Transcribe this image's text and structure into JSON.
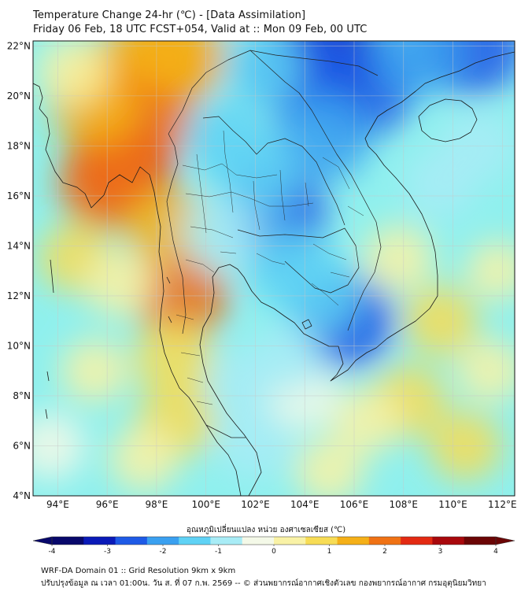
{
  "header": {
    "line1": "Temperature Change 24-hr (℃) - [Data Assimilation]",
    "line2": "Friday 06 Feb, 18 UTC FCST+054, Valid at :: Mon 09 Feb, 00 UTC"
  },
  "map": {
    "lat_range": [
      4,
      22.2
    ],
    "lon_range": [
      93,
      112.5
    ],
    "lat_ticks": [
      {
        "value": 22,
        "label": "22°N"
      },
      {
        "value": 20,
        "label": "20°N"
      },
      {
        "value": 18,
        "label": "18°N"
      },
      {
        "value": 16,
        "label": "16°N"
      },
      {
        "value": 14,
        "label": "14°N"
      },
      {
        "value": 12,
        "label": "12°N"
      },
      {
        "value": 10,
        "label": "10°N"
      },
      {
        "value": 8,
        "label": "8°N"
      },
      {
        "value": 6,
        "label": "6°N"
      },
      {
        "value": 4,
        "label": "4°N"
      }
    ],
    "lon_ticks": [
      {
        "value": 94,
        "label": "94°E"
      },
      {
        "value": 96,
        "label": "96°E"
      },
      {
        "value": 98,
        "label": "98°E"
      },
      {
        "value": 100,
        "label": "100°E"
      },
      {
        "value": 102,
        "label": "102°E"
      },
      {
        "value": 104,
        "label": "104°E"
      },
      {
        "value": 106,
        "label": "106°E"
      },
      {
        "value": 108,
        "label": "108°E"
      },
      {
        "value": 110,
        "label": "110°E"
      },
      {
        "value": 112,
        "label": "112°E"
      }
    ],
    "background_color": "#8ff0ee"
  },
  "colorbar": {
    "title": "อุณหภูมิเปลี่ยนแปลง หน่วย องศาเซลเซียส (℃)",
    "range": [
      -4,
      4
    ],
    "tick_labels": [
      {
        "value": -4,
        "label": "-4"
      },
      {
        "value": -3,
        "label": "-3"
      },
      {
        "value": -2,
        "label": "-2"
      },
      {
        "value": -1,
        "label": "-1"
      },
      {
        "value": 0,
        "label": "0"
      },
      {
        "value": 1,
        "label": "1"
      },
      {
        "value": 2,
        "label": "2"
      },
      {
        "value": 3,
        "label": "3"
      },
      {
        "value": 4,
        "label": "4"
      }
    ],
    "colors": [
      "#08086b",
      "#0a1ab8",
      "#1e5ae6",
      "#3aa0f0",
      "#5fd2f5",
      "#a8ecf6",
      "#f4f9e8",
      "#f9f2a6",
      "#f7dc55",
      "#f5b018",
      "#f07214",
      "#e32a12",
      "#a8080c",
      "#6b0505"
    ]
  },
  "footer": {
    "line1": "WRF-DA Domain 01 :: Grid Resolution 9km x 9km",
    "line2": "ปรับปรุงข้อมูล ณ เวลา 01:00น. วัน ส. ที่ 07 ก.พ. 2569 -- © ส่วนพยากรณ์อากาศเชิงตัวเลข กองพยากรณ์อากาศ กรมอุตุนิยมวิทยา"
  },
  "temperature_field": [
    {
      "lon": 96.6,
      "lat": 17.4,
      "value": 2.8
    },
    {
      "lon": 96.0,
      "lat": 16.5,
      "value": 2.2
    },
    {
      "lon": 97.5,
      "lat": 19.0,
      "value": 2.0
    },
    {
      "lon": 95.5,
      "lat": 19.6,
      "value": 1.6
    },
    {
      "lon": 96.5,
      "lat": 20.8,
      "value": 1.7
    },
    {
      "lon": 98.4,
      "lat": 21.1,
      "value": 1.9
    },
    {
      "lon": 99.1,
      "lat": 21.6,
      "value": 1.5
    },
    {
      "lon": 99.0,
      "lat": 12.0,
      "value": 1.9
    },
    {
      "lon": 98.4,
      "lat": 14.8,
      "value": 1.3
    },
    {
      "lon": 98.7,
      "lat": 9.5,
      "value": 1.0
    },
    {
      "lon": 98.8,
      "lat": 7.0,
      "value": 1.0
    },
    {
      "lon": 94.7,
      "lat": 13.5,
      "value": 0.6
    },
    {
      "lon": 96.5,
      "lat": 12.5,
      "value": 0.5
    },
    {
      "lon": 94.6,
      "lat": 21.0,
      "value": 0.5
    },
    {
      "lon": 95.5,
      "lat": 9.0,
      "value": 0.3
    },
    {
      "lon": 97.5,
      "lat": 5.5,
      "value": 0.4
    },
    {
      "lon": 108.2,
      "lat": 7.8,
      "value": 0.8
    },
    {
      "lon": 110.5,
      "lat": 6.0,
      "value": 0.6
    },
    {
      "lon": 106.5,
      "lat": 7.0,
      "value": 0.5
    },
    {
      "lon": 109.5,
      "lat": 11.0,
      "value": 0.7
    },
    {
      "lon": 105.0,
      "lat": 5.0,
      "value": 0.4
    },
    {
      "lon": 107.8,
      "lat": 13.5,
      "value": 0.5
    },
    {
      "lon": 111.5,
      "lat": 9.0,
      "value": 0.3
    },
    {
      "lon": 105.0,
      "lat": 21.6,
      "value": -3.0
    },
    {
      "lon": 103.8,
      "lat": 21.1,
      "value": -2.6
    },
    {
      "lon": 106.3,
      "lat": 20.4,
      "value": -2.8
    },
    {
      "lon": 110.8,
      "lat": 22.0,
      "value": -2.6
    },
    {
      "lon": 108.5,
      "lat": 21.7,
      "value": -1.8
    },
    {
      "lon": 104.7,
      "lat": 18.4,
      "value": -2.2
    },
    {
      "lon": 102.8,
      "lat": 15.2,
      "value": -2.5
    },
    {
      "lon": 102.0,
      "lat": 16.8,
      "value": -1.5
    },
    {
      "lon": 105.6,
      "lat": 11.0,
      "value": -2.4
    },
    {
      "lon": 104.5,
      "lat": 12.2,
      "value": -1.5
    },
    {
      "lon": 103.3,
      "lat": 13.2,
      "value": -1.3
    },
    {
      "lon": 100.8,
      "lat": 18.3,
      "value": -1.2
    },
    {
      "lon": 100.6,
      "lat": 14.5,
      "value": -1.0
    },
    {
      "lon": 102.0,
      "lat": 6.2,
      "value": -1.1
    },
    {
      "lon": 101.5,
      "lat": 8.5,
      "value": -0.6
    },
    {
      "lon": 104.0,
      "lat": 8.0,
      "value": -0.5
    },
    {
      "lon": 111.0,
      "lat": 18.0,
      "value": -0.8
    },
    {
      "lon": 109.5,
      "lat": 16.5,
      "value": -0.6
    },
    {
      "lon": 103.3,
      "lat": 9.5,
      "value": -0.6
    },
    {
      "lon": 93.7,
      "lat": 6.0,
      "value": -0.5
    },
    {
      "lon": 98.0,
      "lat": 22.0,
      "value": 1.3
    },
    {
      "lon": 102.3,
      "lat": 21.2,
      "value": -1.2
    },
    {
      "lon": 111.8,
      "lat": 13.0,
      "value": 0.0
    }
  ]
}
